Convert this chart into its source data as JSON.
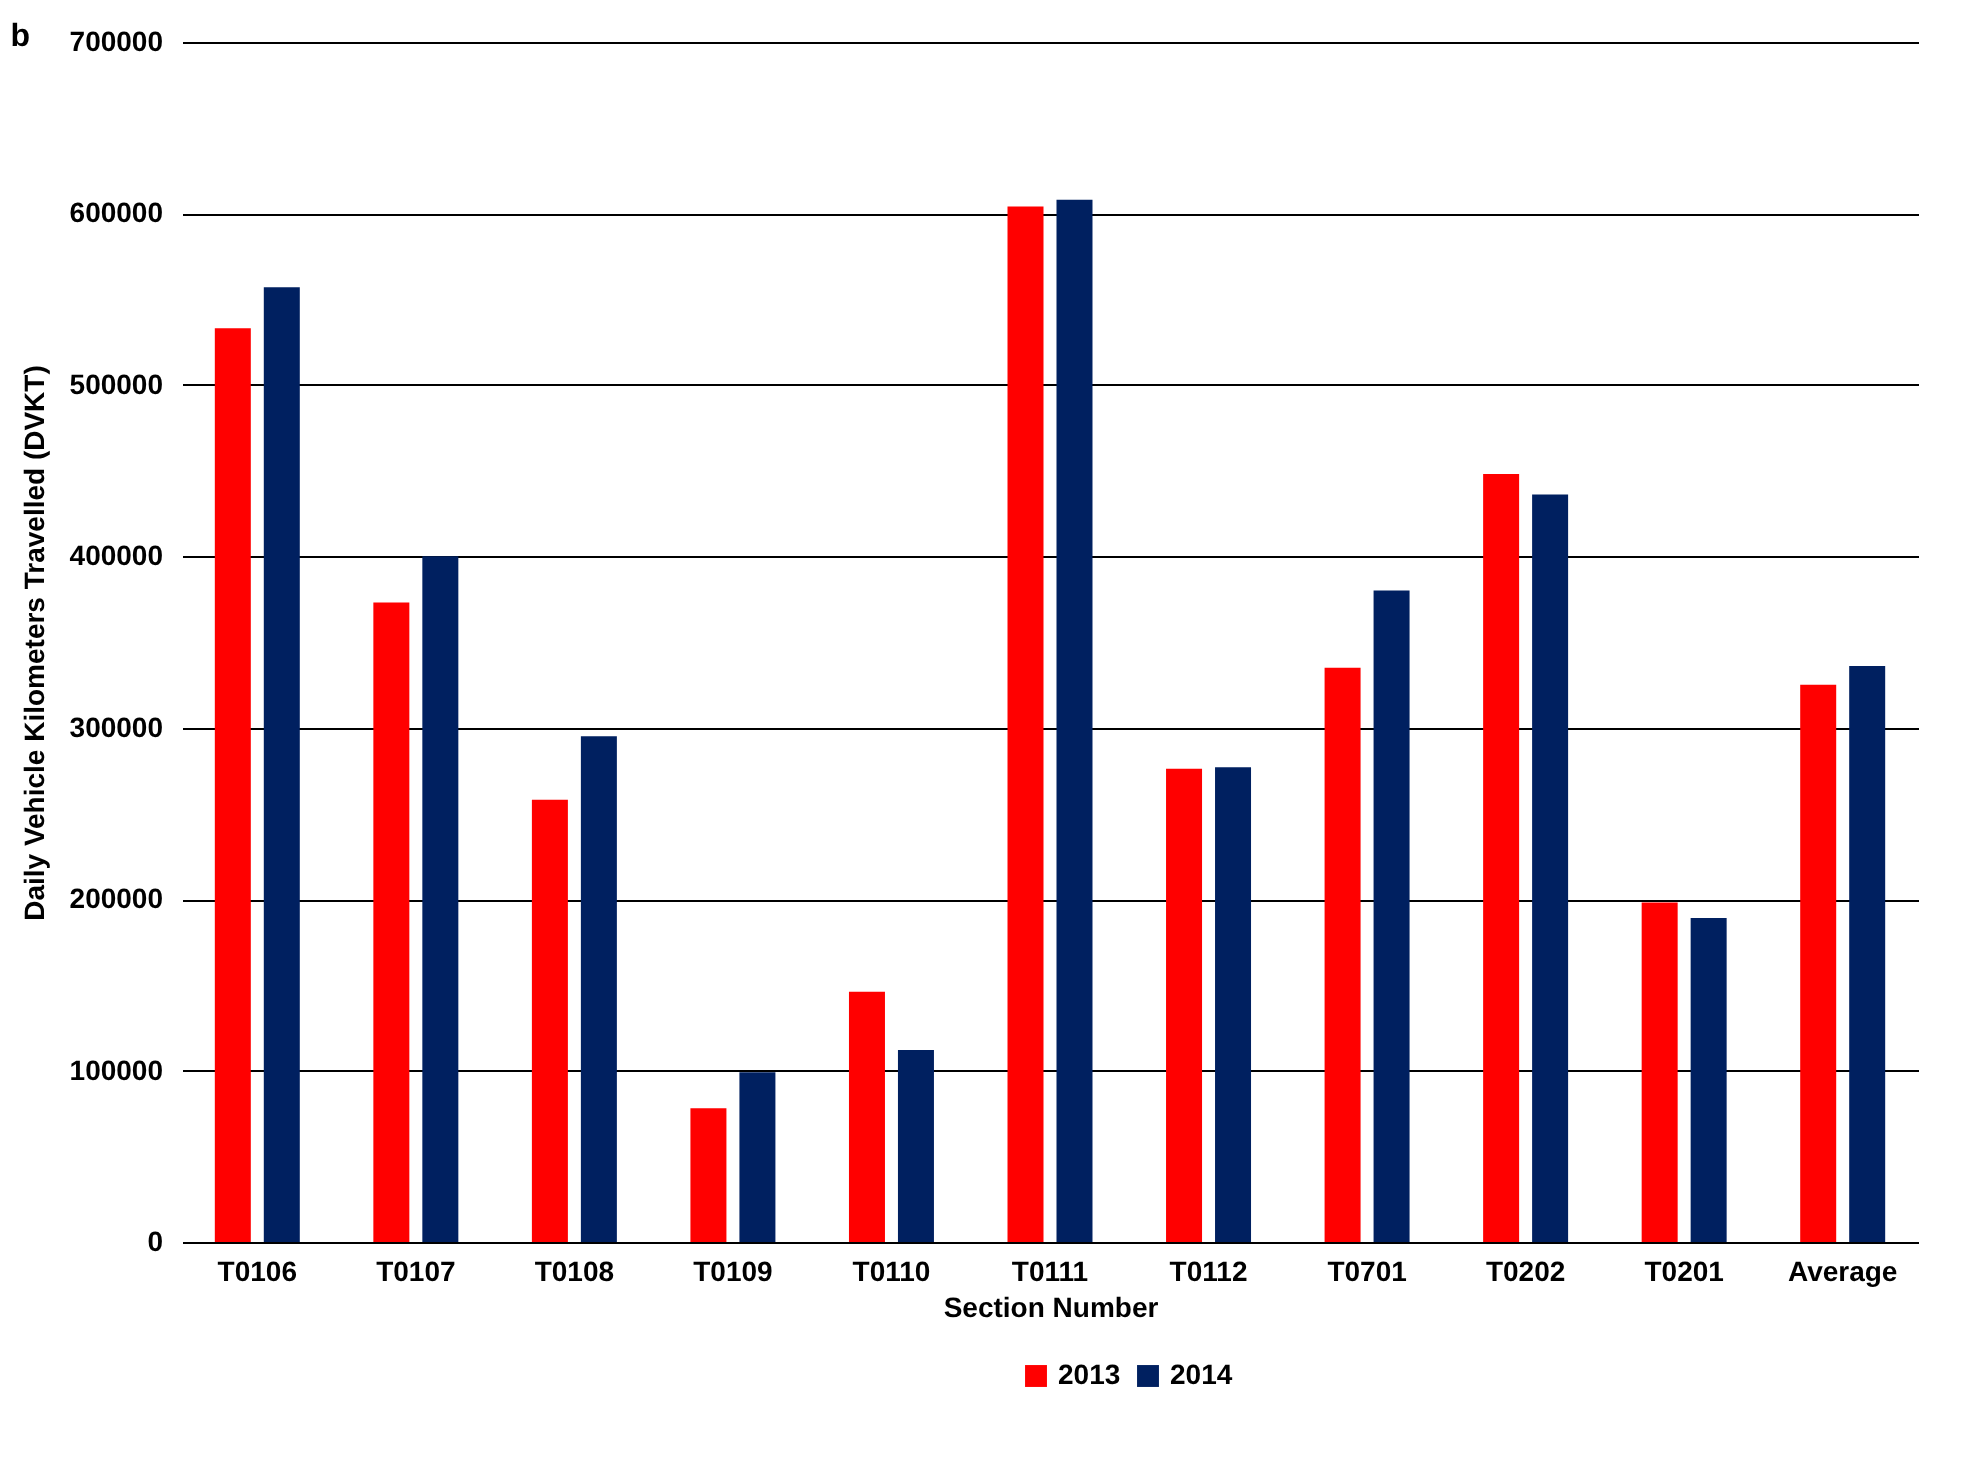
{
  "chart_data": {
    "type": "bar",
    "xlabel": "Section Number",
    "ylabel": "Daily Vehicle Kilometers Travelled (DVKT)",
    "annotations": [
      "b"
    ],
    "categories": [
      "T0106",
      "T0107",
      "T0108",
      "T0109",
      "T0110",
      "T0111",
      "T0112",
      "T0701",
      "T0202",
      "T0201",
      "Average"
    ],
    "series": [
      {
        "name": "2013",
        "color": "#ff0000",
        "values": [
          533000,
          373000,
          258000,
          78000,
          146000,
          604000,
          276000,
          335000,
          448000,
          198000,
          325000
        ]
      },
      {
        "name": "2014",
        "color": "#002060",
        "values": [
          557000,
          400000,
          295000,
          99000,
          112000,
          608000,
          277000,
          380000,
          436000,
          189000,
          336000
        ]
      }
    ],
    "ylim": [
      0,
      700000
    ],
    "yticks": [
      0,
      100000,
      200000,
      300000,
      400000,
      500000,
      600000,
      700000
    ],
    "grid": "y",
    "legend": "bottom"
  }
}
